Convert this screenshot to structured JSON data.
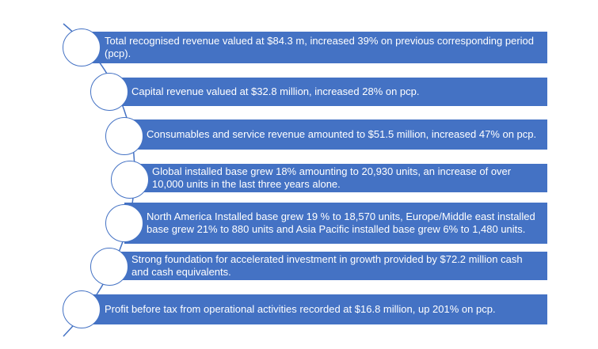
{
  "colors": {
    "bar_fill": "#4472c4",
    "bar_text": "#ffffff",
    "node_fill": "#ffffff",
    "node_stroke": "#4472c4",
    "curve_stroke": "#4472c4"
  },
  "items": [
    {
      "text": "Total recognised revenue valued at $84.3 m, increased 39% on previous corresponding period (pcp)."
    },
    {
      "text": "Capital revenue valued  at $32.8 million, increased 28% on pcp."
    },
    {
      "text": "Consumables and service revenue amounted to $51.5 million, increased 47% on pcp."
    },
    {
      "text": "Global installed base grew 18%  amounting to 20,930 units, an increase of over 10,000 units in the last three years alone."
    },
    {
      "text": "North America Installed base grew 19 % to 18,570 units, Europe/Middle east installed base grew 21% to 880 units and Asia Pacific installed base grew 6% to 1,480 units."
    },
    {
      "text": "Strong foundation for accelerated investment in growth provided by  $72.2 million cash and cash equivalents."
    },
    {
      "text": "Profit before tax from operational activities recorded at $16.8 million, up 201% on pcp."
    }
  ]
}
